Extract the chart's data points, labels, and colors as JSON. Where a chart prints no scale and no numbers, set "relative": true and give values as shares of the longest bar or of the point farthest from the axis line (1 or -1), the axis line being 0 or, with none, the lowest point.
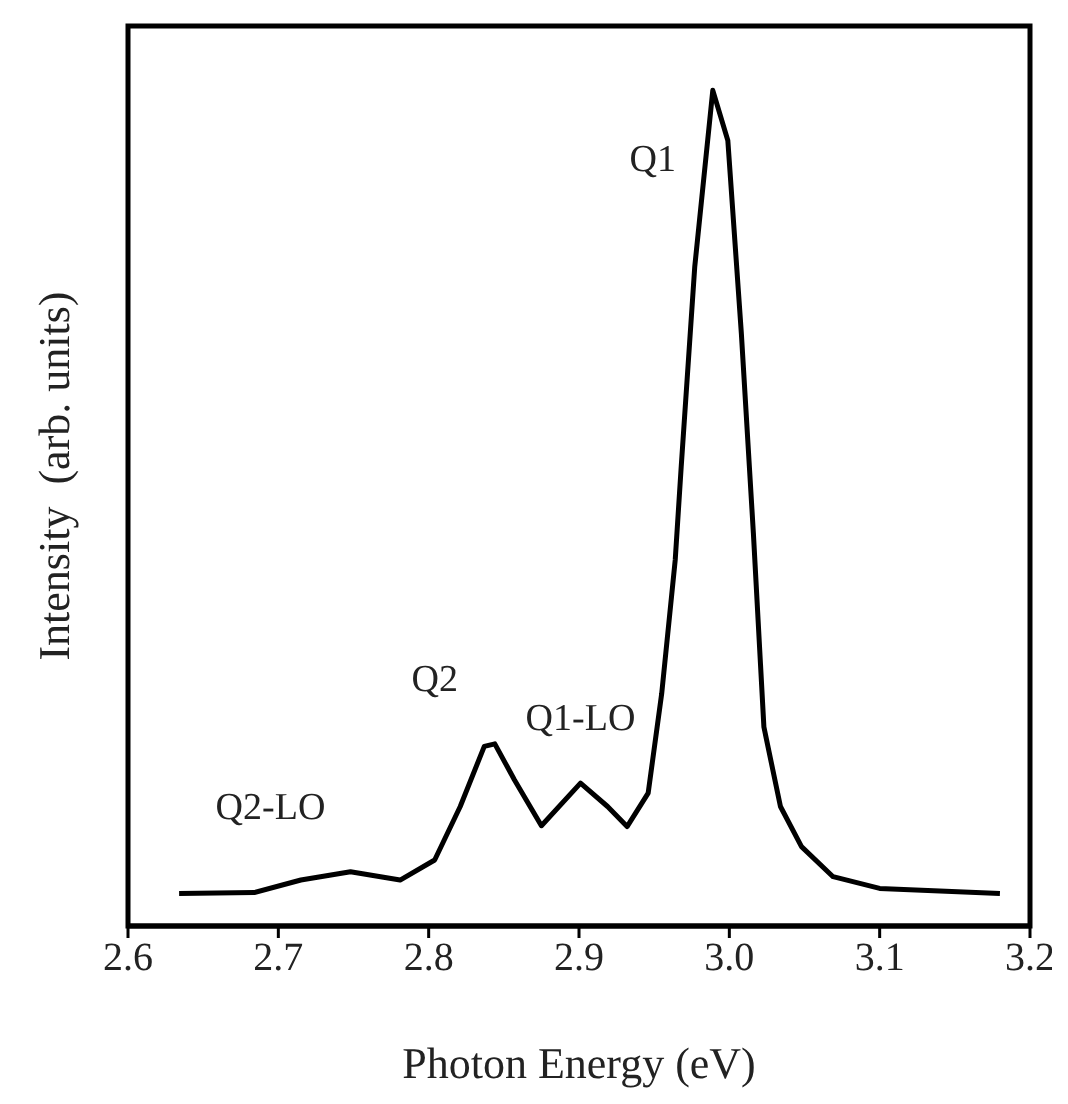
{
  "chart_data": {
    "type": "line",
    "relative": true,
    "xlabel": "Photon Energy  (eV)",
    "ylabel": "Intensity  (arb. units)",
    "xlim": [
      2.6,
      3.2
    ],
    "xticks": [
      2.6,
      2.7,
      2.8,
      2.9,
      {
        "value": 3,
        "label": "3.0"
      },
      3.1,
      3.2
    ],
    "x": [
      2.634,
      2.684,
      2.715,
      2.748,
      2.781,
      2.804,
      2.821,
      2.837,
      2.844,
      2.857,
      2.875,
      2.901,
      2.919,
      2.932,
      2.946,
      2.955,
      2.964,
      2.968,
      2.977,
      2.989,
      2.999,
      3.008,
      3.016,
      3.023,
      3.034,
      3.048,
      3.069,
      3.1,
      3.18
    ],
    "series": [
      {
        "color": "#000000",
        "values": [
          0.039,
          0.04,
          0.055,
          0.065,
          0.055,
          0.079,
          0.143,
          0.215,
          0.218,
          0.175,
          0.12,
          0.171,
          0.143,
          0.119,
          0.159,
          0.278,
          0.438,
          0.55,
          0.789,
          1,
          0.94,
          0.709,
          0.47,
          0.238,
          0.143,
          0.095,
          0.059,
          0.045,
          0.039
        ]
      }
    ],
    "annotations": [
      {
        "text": "Q1",
        "x": 2.989,
        "y": 1
      },
      {
        "text": "Q2",
        "x": 2.844,
        "y": 0.218
      },
      {
        "text": "Q1-LO",
        "x": 2.901,
        "y": 0.171
      },
      {
        "text": "Q2-LO",
        "x": 2.748,
        "y": 0.065
      }
    ],
    "marker": "none",
    "line_style": "solid"
  }
}
